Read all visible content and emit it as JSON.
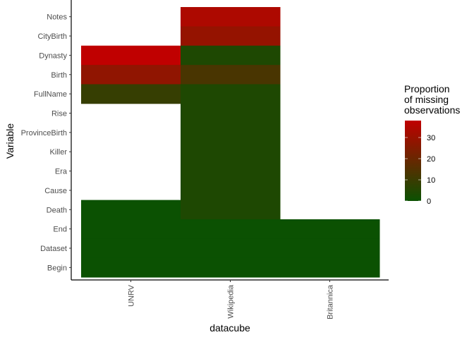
{
  "chart_data": {
    "type": "heatmap",
    "xlabel": "datacube",
    "ylabel": "Variable",
    "x_categories": [
      "UNRV",
      "Wikipedia",
      "Britannica"
    ],
    "y_categories": [
      "Notes",
      "CityBirth",
      "Dynasty",
      "Birth",
      "FullName",
      "Rise",
      "ProvinceBirth",
      "Killer",
      "Era",
      "Cause",
      "Death",
      "End",
      "Dataset",
      "Begin"
    ],
    "cells": [
      {
        "x": "UNRV",
        "y": "Dynasty",
        "value": 38
      },
      {
        "x": "UNRV",
        "y": "Birth",
        "value": 28
      },
      {
        "x": "UNRV",
        "y": "FullName",
        "value": 9
      },
      {
        "x": "UNRV",
        "y": "Death",
        "value": 0
      },
      {
        "x": "UNRV",
        "y": "End",
        "value": 0
      },
      {
        "x": "UNRV",
        "y": "Dataset",
        "value": 0
      },
      {
        "x": "UNRV",
        "y": "Begin",
        "value": 0
      },
      {
        "x": "Wikipedia",
        "y": "Notes",
        "value": 34
      },
      {
        "x": "Wikipedia",
        "y": "CityBirth",
        "value": 29
      },
      {
        "x": "Wikipedia",
        "y": "Dynasty",
        "value": 4
      },
      {
        "x": "Wikipedia",
        "y": "Birth",
        "value": 13
      },
      {
        "x": "Wikipedia",
        "y": "FullName",
        "value": 4
      },
      {
        "x": "Wikipedia",
        "y": "Rise",
        "value": 4
      },
      {
        "x": "Wikipedia",
        "y": "ProvinceBirth",
        "value": 4
      },
      {
        "x": "Wikipedia",
        "y": "Killer",
        "value": 4
      },
      {
        "x": "Wikipedia",
        "y": "Era",
        "value": 4
      },
      {
        "x": "Wikipedia",
        "y": "Cause",
        "value": 4
      },
      {
        "x": "Wikipedia",
        "y": "Death",
        "value": 4
      },
      {
        "x": "Wikipedia",
        "y": "End",
        "value": 0
      },
      {
        "x": "Wikipedia",
        "y": "Dataset",
        "value": 0
      },
      {
        "x": "Wikipedia",
        "y": "Begin",
        "value": 0
      },
      {
        "x": "Britannica",
        "y": "End",
        "value": 0
      },
      {
        "x": "Britannica",
        "y": "Dataset",
        "value": 0
      },
      {
        "x": "Britannica",
        "y": "Begin",
        "value": 0
      }
    ],
    "legend": {
      "title": [
        "Proportion",
        "of missing",
        "observations"
      ],
      "ticks": [
        0,
        10,
        20,
        30
      ],
      "range": [
        0,
        38
      ],
      "low_color": "#0b5102",
      "high_color": "#c00000",
      "placement": "right"
    },
    "grid": false
  }
}
